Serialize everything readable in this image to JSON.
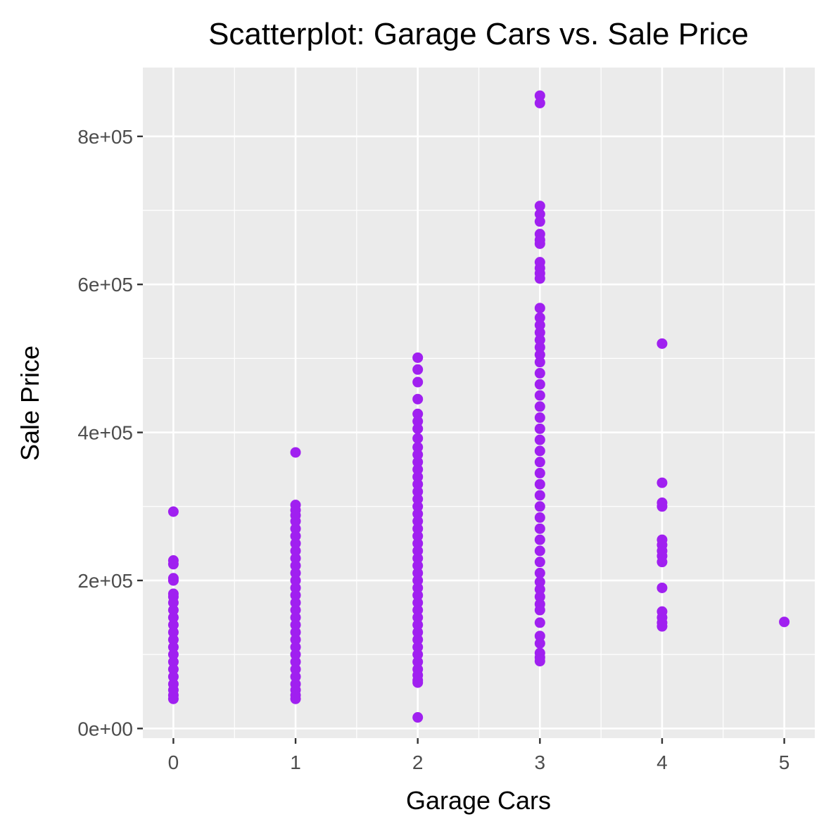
{
  "chart_data": {
    "type": "scatter",
    "title": "Scatterplot: Garage Cars vs. Sale Price",
    "xlabel": "Garage Cars",
    "ylabel": "Sale Price",
    "xlim": [
      -0.25,
      5.25
    ],
    "ylim": [
      -13000,
      893000
    ],
    "x_ticks": [
      0,
      1,
      2,
      3,
      4,
      5
    ],
    "x_tick_labels": [
      "0",
      "1",
      "2",
      "3",
      "4",
      "5"
    ],
    "y_ticks": [
      0,
      200000,
      400000,
      600000,
      800000
    ],
    "y_tick_labels": [
      "0e+00",
      "2e+05",
      "4e+05",
      "6e+05",
      "8e+05"
    ],
    "grid": true,
    "point_color": "#A020F0",
    "panel_background": "#EBEBEB",
    "grid_color": "#FFFFFF",
    "series": [
      {
        "points": [
          {
            "x": 0,
            "y": 293000
          },
          {
            "x": 0,
            "y": 227000
          },
          {
            "x": 0,
            "y": 222000
          },
          {
            "x": 0,
            "y": 203000
          },
          {
            "x": 0,
            "y": 200000
          },
          {
            "x": 0,
            "y": 182000
          },
          {
            "x": 0,
            "y": 178000
          },
          {
            "x": 0,
            "y": 170000
          },
          {
            "x": 0,
            "y": 160000
          },
          {
            "x": 0,
            "y": 150000
          },
          {
            "x": 0,
            "y": 140000
          },
          {
            "x": 0,
            "y": 130000
          },
          {
            "x": 0,
            "y": 120000
          },
          {
            "x": 0,
            "y": 110000
          },
          {
            "x": 0,
            "y": 100000
          },
          {
            "x": 0,
            "y": 90000
          },
          {
            "x": 0,
            "y": 80000
          },
          {
            "x": 0,
            "y": 70000
          },
          {
            "x": 0,
            "y": 60000
          },
          {
            "x": 0,
            "y": 52000
          },
          {
            "x": 0,
            "y": 45000
          },
          {
            "x": 0,
            "y": 40000
          },
          {
            "x": 1,
            "y": 373000
          },
          {
            "x": 1,
            "y": 302000
          },
          {
            "x": 1,
            "y": 295000
          },
          {
            "x": 1,
            "y": 288000
          },
          {
            "x": 1,
            "y": 280000
          },
          {
            "x": 1,
            "y": 270000
          },
          {
            "x": 1,
            "y": 260000
          },
          {
            "x": 1,
            "y": 250000
          },
          {
            "x": 1,
            "y": 240000
          },
          {
            "x": 1,
            "y": 230000
          },
          {
            "x": 1,
            "y": 220000
          },
          {
            "x": 1,
            "y": 210000
          },
          {
            "x": 1,
            "y": 200000
          },
          {
            "x": 1,
            "y": 190000
          },
          {
            "x": 1,
            "y": 180000
          },
          {
            "x": 1,
            "y": 170000
          },
          {
            "x": 1,
            "y": 160000
          },
          {
            "x": 1,
            "y": 150000
          },
          {
            "x": 1,
            "y": 140000
          },
          {
            "x": 1,
            "y": 130000
          },
          {
            "x": 1,
            "y": 120000
          },
          {
            "x": 1,
            "y": 110000
          },
          {
            "x": 1,
            "y": 100000
          },
          {
            "x": 1,
            "y": 90000
          },
          {
            "x": 1,
            "y": 80000
          },
          {
            "x": 1,
            "y": 70000
          },
          {
            "x": 1,
            "y": 60000
          },
          {
            "x": 1,
            "y": 52000
          },
          {
            "x": 1,
            "y": 45000
          },
          {
            "x": 1,
            "y": 40000
          },
          {
            "x": 2,
            "y": 501000
          },
          {
            "x": 2,
            "y": 485000
          },
          {
            "x": 2,
            "y": 468000
          },
          {
            "x": 2,
            "y": 445000
          },
          {
            "x": 2,
            "y": 425000
          },
          {
            "x": 2,
            "y": 415000
          },
          {
            "x": 2,
            "y": 405000
          },
          {
            "x": 2,
            "y": 392000
          },
          {
            "x": 2,
            "y": 380000
          },
          {
            "x": 2,
            "y": 370000
          },
          {
            "x": 2,
            "y": 360000
          },
          {
            "x": 2,
            "y": 350000
          },
          {
            "x": 2,
            "y": 340000
          },
          {
            "x": 2,
            "y": 330000
          },
          {
            "x": 2,
            "y": 320000
          },
          {
            "x": 2,
            "y": 310000
          },
          {
            "x": 2,
            "y": 300000
          },
          {
            "x": 2,
            "y": 290000
          },
          {
            "x": 2,
            "y": 280000
          },
          {
            "x": 2,
            "y": 270000
          },
          {
            "x": 2,
            "y": 260000
          },
          {
            "x": 2,
            "y": 250000
          },
          {
            "x": 2,
            "y": 240000
          },
          {
            "x": 2,
            "y": 230000
          },
          {
            "x": 2,
            "y": 220000
          },
          {
            "x": 2,
            "y": 210000
          },
          {
            "x": 2,
            "y": 200000
          },
          {
            "x": 2,
            "y": 190000
          },
          {
            "x": 2,
            "y": 180000
          },
          {
            "x": 2,
            "y": 170000
          },
          {
            "x": 2,
            "y": 160000
          },
          {
            "x": 2,
            "y": 150000
          },
          {
            "x": 2,
            "y": 140000
          },
          {
            "x": 2,
            "y": 130000
          },
          {
            "x": 2,
            "y": 120000
          },
          {
            "x": 2,
            "y": 110000
          },
          {
            "x": 2,
            "y": 100000
          },
          {
            "x": 2,
            "y": 90000
          },
          {
            "x": 2,
            "y": 80000
          },
          {
            "x": 2,
            "y": 72000
          },
          {
            "x": 2,
            "y": 65000
          },
          {
            "x": 2,
            "y": 62000
          },
          {
            "x": 2,
            "y": 15000
          },
          {
            "x": 3,
            "y": 855000
          },
          {
            "x": 3,
            "y": 845000
          },
          {
            "x": 3,
            "y": 706000
          },
          {
            "x": 3,
            "y": 695000
          },
          {
            "x": 3,
            "y": 685000
          },
          {
            "x": 3,
            "y": 668000
          },
          {
            "x": 3,
            "y": 660000
          },
          {
            "x": 3,
            "y": 655000
          },
          {
            "x": 3,
            "y": 630000
          },
          {
            "x": 3,
            "y": 622000
          },
          {
            "x": 3,
            "y": 615000
          },
          {
            "x": 3,
            "y": 608000
          },
          {
            "x": 3,
            "y": 568000
          },
          {
            "x": 3,
            "y": 555000
          },
          {
            "x": 3,
            "y": 545000
          },
          {
            "x": 3,
            "y": 535000
          },
          {
            "x": 3,
            "y": 525000
          },
          {
            "x": 3,
            "y": 515000
          },
          {
            "x": 3,
            "y": 505000
          },
          {
            "x": 3,
            "y": 495000
          },
          {
            "x": 3,
            "y": 480000
          },
          {
            "x": 3,
            "y": 465000
          },
          {
            "x": 3,
            "y": 450000
          },
          {
            "x": 3,
            "y": 435000
          },
          {
            "x": 3,
            "y": 420000
          },
          {
            "x": 3,
            "y": 405000
          },
          {
            "x": 3,
            "y": 390000
          },
          {
            "x": 3,
            "y": 375000
          },
          {
            "x": 3,
            "y": 360000
          },
          {
            "x": 3,
            "y": 345000
          },
          {
            "x": 3,
            "y": 330000
          },
          {
            "x": 3,
            "y": 315000
          },
          {
            "x": 3,
            "y": 300000
          },
          {
            "x": 3,
            "y": 285000
          },
          {
            "x": 3,
            "y": 270000
          },
          {
            "x": 3,
            "y": 255000
          },
          {
            "x": 3,
            "y": 240000
          },
          {
            "x": 3,
            "y": 225000
          },
          {
            "x": 3,
            "y": 210000
          },
          {
            "x": 3,
            "y": 198000
          },
          {
            "x": 3,
            "y": 188000
          },
          {
            "x": 3,
            "y": 178000
          },
          {
            "x": 3,
            "y": 168000
          },
          {
            "x": 3,
            "y": 160000
          },
          {
            "x": 3,
            "y": 143000
          },
          {
            "x": 3,
            "y": 125000
          },
          {
            "x": 3,
            "y": 115000
          },
          {
            "x": 3,
            "y": 102000
          },
          {
            "x": 3,
            "y": 96000
          },
          {
            "x": 3,
            "y": 91000
          },
          {
            "x": 4,
            "y": 520000
          },
          {
            "x": 4,
            "y": 332000
          },
          {
            "x": 4,
            "y": 305000
          },
          {
            "x": 4,
            "y": 300000
          },
          {
            "x": 4,
            "y": 255000
          },
          {
            "x": 4,
            "y": 248000
          },
          {
            "x": 4,
            "y": 240000
          },
          {
            "x": 4,
            "y": 233000
          },
          {
            "x": 4,
            "y": 225000
          },
          {
            "x": 4,
            "y": 190000
          },
          {
            "x": 4,
            "y": 158000
          },
          {
            "x": 4,
            "y": 150000
          },
          {
            "x": 4,
            "y": 143000
          },
          {
            "x": 4,
            "y": 138000
          },
          {
            "x": 5,
            "y": 144000
          }
        ]
      }
    ]
  }
}
